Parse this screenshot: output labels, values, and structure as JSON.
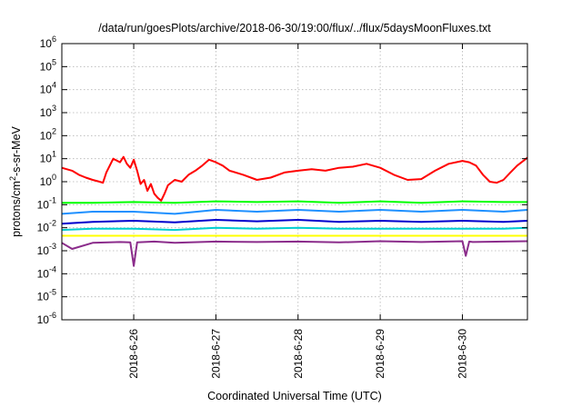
{
  "chart_data": {
    "type": "line",
    "title": "/data/run/goesPlots/archive/2018-06-30/19:00/flux/../flux/5daysMoonFluxes.txt",
    "xlabel": "Coordinated Universal Time (UTC)",
    "ylabel": {
      "prefix": "protons/cm",
      "sup": "2",
      "suffix": "-s-sr-MeV"
    },
    "yscale": "log",
    "ylim": [
      1e-06,
      1000000.0
    ],
    "xlim": [
      "2018-06-25T03:00",
      "2018-06-30T19:00"
    ],
    "y_ticks": [
      {
        "value": 1e-06,
        "base": "10",
        "exp": "-6"
      },
      {
        "value": 1e-05,
        "base": "10",
        "exp": "-5"
      },
      {
        "value": 0.0001,
        "base": "10",
        "exp": "-4"
      },
      {
        "value": 0.001,
        "base": "10",
        "exp": "-3"
      },
      {
        "value": 0.01,
        "base": "10",
        "exp": "-2"
      },
      {
        "value": 0.1,
        "base": "10",
        "exp": "-1"
      },
      {
        "value": 1,
        "base": "10",
        "exp": "0"
      },
      {
        "value": 10,
        "base": "10",
        "exp": "1"
      },
      {
        "value": 100,
        "base": "10",
        "exp": "2"
      },
      {
        "value": 1000,
        "base": "10",
        "exp": "3"
      },
      {
        "value": 10000,
        "base": "10",
        "exp": "4"
      },
      {
        "value": 100000,
        "base": "10",
        "exp": "5"
      },
      {
        "value": 1000000,
        "base": "10",
        "exp": "6"
      }
    ],
    "x_ticks": [
      {
        "value": "2018-06-26T00:00",
        "label": "2018-6-26"
      },
      {
        "value": "2018-06-27T00:00",
        "label": "2018-6-27"
      },
      {
        "value": "2018-06-28T00:00",
        "label": "2018-6-28"
      },
      {
        "value": "2018-06-29T00:00",
        "label": "2018-6-29"
      },
      {
        "value": "2018-06-30T00:00",
        "label": "2018-6-30"
      }
    ],
    "grid": true,
    "series": [
      {
        "color": "#ff0000",
        "x": [
          "2018-06-25T03:00",
          "2018-06-25T06:00",
          "2018-06-25T08:00",
          "2018-06-25T10:00",
          "2018-06-25T12:00",
          "2018-06-25T14:00",
          "2018-06-25T15:00",
          "2018-06-25T16:00",
          "2018-06-25T17:00",
          "2018-06-25T18:00",
          "2018-06-25T20:00",
          "2018-06-25T21:00",
          "2018-06-25T22:00",
          "2018-06-25T23:00",
          "2018-06-26T00:00",
          "2018-06-26T01:00",
          "2018-06-26T02:00",
          "2018-06-26T03:00",
          "2018-06-26T04:00",
          "2018-06-26T05:00",
          "2018-06-26T06:00",
          "2018-06-26T07:00",
          "2018-06-26T08:00",
          "2018-06-26T09:00",
          "2018-06-26T10:00",
          "2018-06-26T12:00",
          "2018-06-26T14:00",
          "2018-06-26T16:00",
          "2018-06-26T18:00",
          "2018-06-26T20:00",
          "2018-06-26T22:00",
          "2018-06-27T00:00",
          "2018-06-27T02:00",
          "2018-06-27T04:00",
          "2018-06-27T08:00",
          "2018-06-27T12:00",
          "2018-06-27T16:00",
          "2018-06-27T20:00",
          "2018-06-28T00:00",
          "2018-06-28T04:00",
          "2018-06-28T08:00",
          "2018-06-28T12:00",
          "2018-06-28T16:00",
          "2018-06-28T20:00",
          "2018-06-29T00:00",
          "2018-06-29T04:00",
          "2018-06-29T08:00",
          "2018-06-29T12:00",
          "2018-06-29T16:00",
          "2018-06-29T20:00",
          "2018-06-30T00:00",
          "2018-06-30T02:00",
          "2018-06-30T04:00",
          "2018-06-30T06:00",
          "2018-06-30T08:00",
          "2018-06-30T10:00",
          "2018-06-30T12:00",
          "2018-06-30T14:00",
          "2018-06-30T16:00",
          "2018-06-30T19:00"
        ],
        "y": [
          4,
          3,
          2,
          1.5,
          1.2,
          1.0,
          0.9,
          2.5,
          5,
          10,
          7,
          12,
          6,
          4,
          9,
          3,
          0.8,
          1.2,
          0.4,
          0.8,
          0.3,
          0.2,
          0.15,
          0.3,
          0.7,
          1.2,
          1.0,
          2.0,
          3.0,
          5.0,
          9,
          7,
          5,
          3,
          2,
          1.2,
          1.5,
          2.5,
          3,
          3.5,
          3,
          4,
          4.5,
          6,
          4,
          2,
          1.2,
          1.3,
          3,
          6,
          8,
          7,
          5,
          2,
          1,
          0.9,
          1.2,
          2.5,
          5,
          11
        ]
      },
      {
        "color": "#00ff00",
        "x": [
          "2018-06-25T03:00",
          "2018-06-25T12:00",
          "2018-06-26T00:00",
          "2018-06-26T12:00",
          "2018-06-27T00:00",
          "2018-06-27T12:00",
          "2018-06-28T00:00",
          "2018-06-28T12:00",
          "2018-06-29T00:00",
          "2018-06-29T12:00",
          "2018-06-30T00:00",
          "2018-06-30T12:00",
          "2018-06-30T19:00"
        ],
        "y": [
          0.12,
          0.12,
          0.13,
          0.12,
          0.14,
          0.13,
          0.14,
          0.12,
          0.14,
          0.12,
          0.14,
          0.13,
          0.13
        ]
      },
      {
        "color": "#1e90ff",
        "x": [
          "2018-06-25T03:00",
          "2018-06-25T12:00",
          "2018-06-26T00:00",
          "2018-06-26T12:00",
          "2018-06-27T00:00",
          "2018-06-27T12:00",
          "2018-06-28T00:00",
          "2018-06-28T12:00",
          "2018-06-29T00:00",
          "2018-06-29T12:00",
          "2018-06-30T00:00",
          "2018-06-30T12:00",
          "2018-06-30T19:00"
        ],
        "y": [
          0.04,
          0.05,
          0.05,
          0.04,
          0.06,
          0.05,
          0.06,
          0.05,
          0.06,
          0.05,
          0.06,
          0.05,
          0.06
        ]
      },
      {
        "color": "#0000cd",
        "x": [
          "2018-06-25T03:00",
          "2018-06-25T12:00",
          "2018-06-26T00:00",
          "2018-06-26T12:00",
          "2018-06-27T00:00",
          "2018-06-27T12:00",
          "2018-06-28T00:00",
          "2018-06-28T12:00",
          "2018-06-29T00:00",
          "2018-06-29T12:00",
          "2018-06-30T00:00",
          "2018-06-30T12:00",
          "2018-06-30T19:00"
        ],
        "y": [
          0.015,
          0.018,
          0.02,
          0.017,
          0.022,
          0.019,
          0.022,
          0.018,
          0.02,
          0.018,
          0.02,
          0.018,
          0.02
        ]
      },
      {
        "color": "#00ced1",
        "x": [
          "2018-06-25T03:00",
          "2018-06-25T12:00",
          "2018-06-26T00:00",
          "2018-06-26T12:00",
          "2018-06-27T00:00",
          "2018-06-27T12:00",
          "2018-06-28T00:00",
          "2018-06-28T12:00",
          "2018-06-29T00:00",
          "2018-06-29T12:00",
          "2018-06-30T00:00",
          "2018-06-30T12:00",
          "2018-06-30T19:00"
        ],
        "y": [
          0.008,
          0.009,
          0.009,
          0.008,
          0.01,
          0.009,
          0.01,
          0.009,
          0.009,
          0.009,
          0.009,
          0.009,
          0.01
        ]
      },
      {
        "color": "#ffff00",
        "x": [
          "2018-06-25T03:00",
          "2018-06-26T00:00",
          "2018-06-27T00:00",
          "2018-06-28T00:00",
          "2018-06-29T00:00",
          "2018-06-30T00:00",
          "2018-06-30T19:00"
        ],
        "y": [
          0.0045,
          0.0045,
          0.0045,
          0.0045,
          0.0045,
          0.0045,
          0.0045
        ]
      },
      {
        "color": "#8b2c8b",
        "x": [
          "2018-06-25T03:00",
          "2018-06-25T06:00",
          "2018-06-25T12:00",
          "2018-06-25T20:00",
          "2018-06-25T23:00",
          "2018-06-26T00:00",
          "2018-06-26T01:00",
          "2018-06-26T06:00",
          "2018-06-26T12:00",
          "2018-06-27T00:00",
          "2018-06-27T12:00",
          "2018-06-28T00:00",
          "2018-06-28T12:00",
          "2018-06-29T00:00",
          "2018-06-29T12:00",
          "2018-06-30T00:00",
          "2018-06-30T01:00",
          "2018-06-30T02:00",
          "2018-06-30T03:00",
          "2018-06-30T12:00",
          "2018-06-30T19:00"
        ],
        "y": [
          0.0022,
          0.0012,
          0.0022,
          0.0024,
          0.0023,
          0.00022,
          0.0023,
          0.0025,
          0.0022,
          0.0025,
          0.0024,
          0.0025,
          0.0023,
          0.0026,
          0.0024,
          0.0026,
          0.0006,
          0.0025,
          0.0024,
          0.0025,
          0.0026
        ]
      }
    ]
  }
}
